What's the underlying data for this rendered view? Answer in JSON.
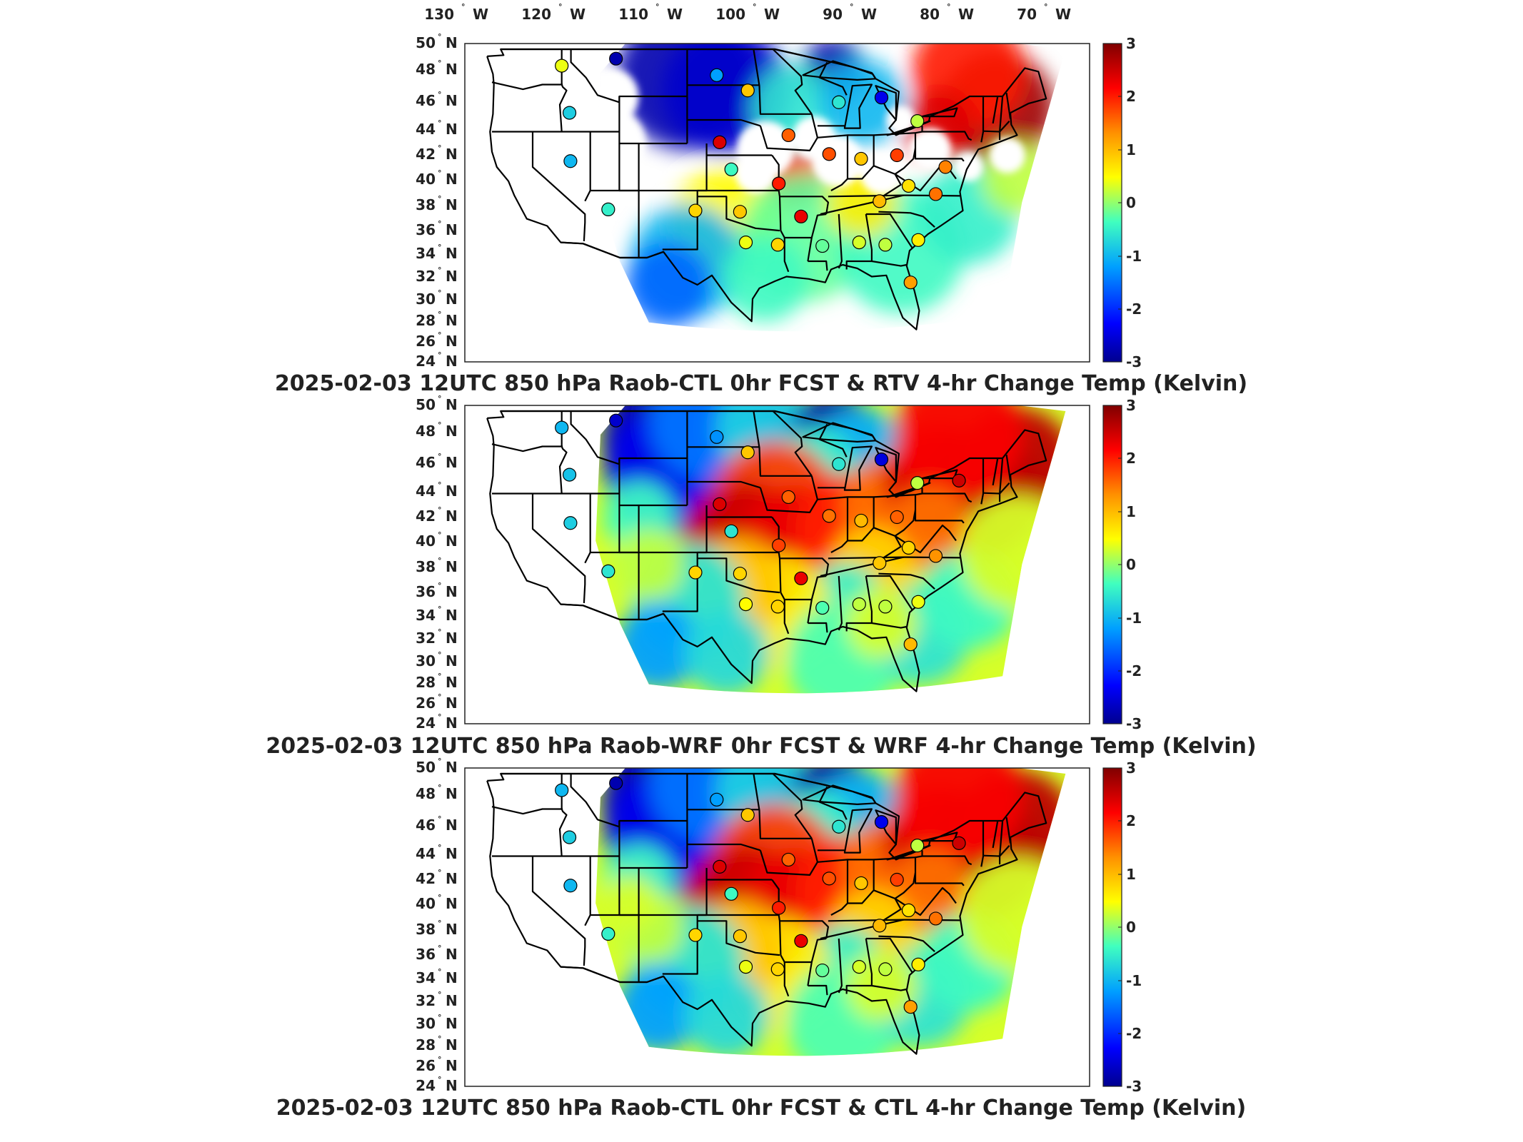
{
  "lon_ticks": [
    "130",
    "120",
    "110",
    "100",
    "90",
    "80",
    "70"
  ],
  "lon_suffix": "W",
  "lat_ticks": [
    "50",
    "48",
    "46",
    "44",
    "42",
    "40",
    "38",
    "36",
    "34",
    "32",
    "30",
    "28",
    "26",
    "24"
  ],
  "lat_suffix": "N",
  "colorbar": {
    "ticks": [
      "3",
      "2",
      "1",
      "0",
      "-1",
      "-2",
      "-3"
    ],
    "min": -3,
    "max": 3,
    "colormap": [
      "#00008f",
      "#0000ff",
      "#00a0ff",
      "#40ffbf",
      "#ffff00",
      "#ff9000",
      "#ff0000",
      "#800000"
    ]
  },
  "panels": [
    {
      "title": "2025-02-03 12UTC 850 hPa Raob-CTL 0hr FCST & RTV 4-hr Change Temp (Kelvin)",
      "field": "RTV 4-hr change (patchy retrieval coverage)",
      "stations": [
        {
          "lon": -117,
          "lat": 47.6,
          "value": 0.4
        },
        {
          "lon": -111.4,
          "lat": 48.2,
          "value": -2.8
        },
        {
          "lon": -101,
          "lat": 46.8,
          "value": -1.2
        },
        {
          "lon": -97.8,
          "lat": 45.5,
          "value": 0.9
        },
        {
          "lon": -88.4,
          "lat": 44.5,
          "value": -0.6
        },
        {
          "lon": -84,
          "lat": 44.9,
          "value": -2.4
        },
        {
          "lon": -116.2,
          "lat": 43.6,
          "value": -0.8
        },
        {
          "lon": -100.7,
          "lat": 41.1,
          "value": 2.4
        },
        {
          "lon": -80.3,
          "lat": 42.9,
          "value": 0.2
        },
        {
          "lon": -93.6,
          "lat": 41.7,
          "value": 1.6
        },
        {
          "lon": -89.4,
          "lat": 40.1,
          "value": 1.7
        },
        {
          "lon": -86.1,
          "lat": 39.7,
          "value": 0.9
        },
        {
          "lon": -82.4,
          "lat": 40.0,
          "value": 1.8
        },
        {
          "lon": -77.4,
          "lat": 39.0,
          "value": 1.4
        },
        {
          "lon": -116.1,
          "lat": 39.5,
          "value": -1.0
        },
        {
          "lon": -99.5,
          "lat": 38.8,
          "value": -0.4
        },
        {
          "lon": -94.6,
          "lat": 37.6,
          "value": 2.0
        },
        {
          "lon": -81.2,
          "lat": 37.4,
          "value": 0.7
        },
        {
          "lon": -84.2,
          "lat": 36.1,
          "value": 1.0
        },
        {
          "lon": -78.4,
          "lat": 36.7,
          "value": 1.5
        },
        {
          "lon": -112.2,
          "lat": 35.4,
          "value": -0.5
        },
        {
          "lon": -103.2,
          "lat": 35.3,
          "value": 0.8
        },
        {
          "lon": -98.6,
          "lat": 35.2,
          "value": 0.9
        },
        {
          "lon": -92.3,
          "lat": 34.8,
          "value": 2.3
        },
        {
          "lon": -98.0,
          "lat": 32.6,
          "value": 0.4
        },
        {
          "lon": -94.7,
          "lat": 32.4,
          "value": 0.8
        },
        {
          "lon": -90.1,
          "lat": 32.3,
          "value": -0.2
        },
        {
          "lon": -86.3,
          "lat": 32.6,
          "value": 0.3
        },
        {
          "lon": -83.6,
          "lat": 32.4,
          "value": 0.2
        },
        {
          "lon": -80.2,
          "lat": 32.8,
          "value": 0.6
        },
        {
          "lon": -81.0,
          "lat": 29.2,
          "value": 1.2
        }
      ]
    },
    {
      "title": "2025-02-03 12UTC 850 hPa Raob-WRF 0hr FCST & WRF 4-hr Change Temp (Kelvin)",
      "field": "WRF 4-hr change",
      "stations": [
        {
          "lon": -117,
          "lat": 47.6,
          "value": -1.0
        },
        {
          "lon": -111.4,
          "lat": 48.2,
          "value": -2.6
        },
        {
          "lon": -101,
          "lat": 46.8,
          "value": -1.3
        },
        {
          "lon": -97.8,
          "lat": 45.5,
          "value": 0.9
        },
        {
          "lon": -88.4,
          "lat": 44.5,
          "value": -0.6
        },
        {
          "lon": -84,
          "lat": 44.9,
          "value": -2.5
        },
        {
          "lon": -116.2,
          "lat": 43.6,
          "value": -0.9
        },
        {
          "lon": -100.7,
          "lat": 41.1,
          "value": 2.4
        },
        {
          "lon": -80.3,
          "lat": 42.9,
          "value": 0.2
        },
        {
          "lon": -76.0,
          "lat": 43.1,
          "value": 2.5
        },
        {
          "lon": -93.6,
          "lat": 41.7,
          "value": 1.6
        },
        {
          "lon": -89.4,
          "lat": 40.1,
          "value": 1.5
        },
        {
          "lon": -86.1,
          "lat": 39.7,
          "value": 1.0
        },
        {
          "lon": -82.4,
          "lat": 40.0,
          "value": 1.6
        },
        {
          "lon": -116.1,
          "lat": 39.5,
          "value": -0.8
        },
        {
          "lon": -99.5,
          "lat": 38.8,
          "value": -0.6
        },
        {
          "lon": -94.6,
          "lat": 37.6,
          "value": 1.8
        },
        {
          "lon": -81.2,
          "lat": 37.4,
          "value": 0.8
        },
        {
          "lon": -84.2,
          "lat": 36.1,
          "value": 0.9
        },
        {
          "lon": -78.4,
          "lat": 36.7,
          "value": 1.3
        },
        {
          "lon": -112.2,
          "lat": 35.4,
          "value": -0.6
        },
        {
          "lon": -103.2,
          "lat": 35.3,
          "value": 0.8
        },
        {
          "lon": -98.6,
          "lat": 35.2,
          "value": 0.8
        },
        {
          "lon": -92.3,
          "lat": 34.8,
          "value": 2.3
        },
        {
          "lon": -98.0,
          "lat": 32.6,
          "value": 0.5
        },
        {
          "lon": -94.7,
          "lat": 32.4,
          "value": 0.8
        },
        {
          "lon": -90.1,
          "lat": 32.3,
          "value": -0.3
        },
        {
          "lon": -86.3,
          "lat": 32.6,
          "value": 0.2
        },
        {
          "lon": -83.6,
          "lat": 32.4,
          "value": 0.2
        },
        {
          "lon": -80.2,
          "lat": 32.8,
          "value": 0.4
        },
        {
          "lon": -81.0,
          "lat": 29.2,
          "value": 1.0
        }
      ]
    },
    {
      "title": "2025-02-03 12UTC 850 hPa Raob-CTL 0hr FCST & CTL 4-hr Change Temp (Kelvin)",
      "field": "CTL 4-hr change",
      "stations": [
        {
          "lon": -117,
          "lat": 47.6,
          "value": -1.0
        },
        {
          "lon": -111.4,
          "lat": 48.2,
          "value": -2.8
        },
        {
          "lon": -101,
          "lat": 46.8,
          "value": -1.2
        },
        {
          "lon": -97.8,
          "lat": 45.5,
          "value": 0.9
        },
        {
          "lon": -88.4,
          "lat": 44.5,
          "value": -0.6
        },
        {
          "lon": -84,
          "lat": 44.9,
          "value": -2.4
        },
        {
          "lon": -116.2,
          "lat": 43.6,
          "value": -0.8
        },
        {
          "lon": -100.7,
          "lat": 41.1,
          "value": 2.4
        },
        {
          "lon": -80.3,
          "lat": 42.9,
          "value": 0.2
        },
        {
          "lon": -76.0,
          "lat": 43.1,
          "value": 2.5
        },
        {
          "lon": -93.6,
          "lat": 41.7,
          "value": 1.6
        },
        {
          "lon": -89.4,
          "lat": 40.1,
          "value": 1.7
        },
        {
          "lon": -86.1,
          "lat": 39.7,
          "value": 0.9
        },
        {
          "lon": -82.4,
          "lat": 40.0,
          "value": 1.8
        },
        {
          "lon": -116.1,
          "lat": 39.5,
          "value": -1.0
        },
        {
          "lon": -99.5,
          "lat": 38.8,
          "value": -0.4
        },
        {
          "lon": -94.6,
          "lat": 37.6,
          "value": 2.0
        },
        {
          "lon": -81.2,
          "lat": 37.4,
          "value": 0.7
        },
        {
          "lon": -84.2,
          "lat": 36.1,
          "value": 1.0
        },
        {
          "lon": -78.4,
          "lat": 36.7,
          "value": 1.5
        },
        {
          "lon": -112.2,
          "lat": 35.4,
          "value": -0.5
        },
        {
          "lon": -103.2,
          "lat": 35.3,
          "value": 0.8
        },
        {
          "lon": -98.6,
          "lat": 35.2,
          "value": 0.9
        },
        {
          "lon": -92.3,
          "lat": 34.8,
          "value": 2.3
        },
        {
          "lon": -98.0,
          "lat": 32.6,
          "value": 0.4
        },
        {
          "lon": -94.7,
          "lat": 32.4,
          "value": 0.8
        },
        {
          "lon": -90.1,
          "lat": 32.3,
          "value": -0.2
        },
        {
          "lon": -86.3,
          "lat": 32.6,
          "value": 0.3
        },
        {
          "lon": -83.6,
          "lat": 32.4,
          "value": 0.2
        },
        {
          "lon": -80.2,
          "lat": 32.8,
          "value": 0.6
        },
        {
          "lon": -81.0,
          "lat": 29.2,
          "value": 1.2
        }
      ]
    }
  ]
}
